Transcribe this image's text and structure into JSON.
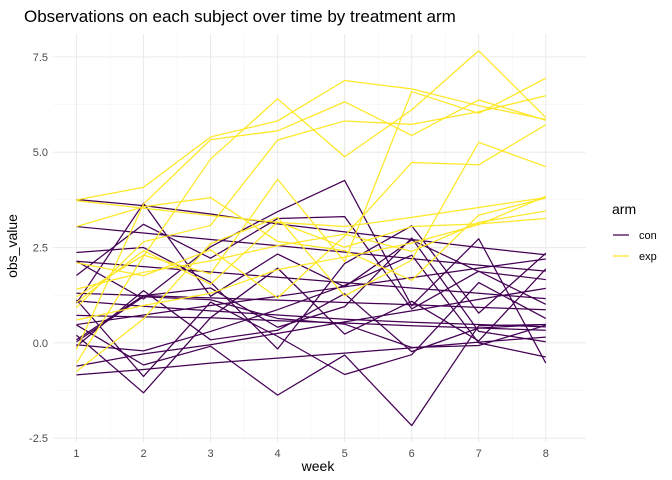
{
  "chart_data": {
    "type": "line",
    "title": "Observations on each subject over time by treatment arm",
    "xlabel": "week",
    "ylabel": "obs_value",
    "x": [
      1,
      2,
      3,
      4,
      5,
      6,
      7,
      8
    ],
    "xlim": [
      0.65,
      8.6
    ],
    "ylim": [
      -2.6,
      8.1
    ],
    "x_ticks": [
      1,
      2,
      3,
      4,
      5,
      6,
      7,
      8
    ],
    "y_ticks": [
      -2.5,
      0,
      2.5,
      5,
      7.5
    ],
    "y_tick_labels": [
      "-2.5",
      "0.0",
      "2.5",
      "5.0",
      "7.5"
    ],
    "grid": true,
    "legend": {
      "title": "arm",
      "placement": "right",
      "entries": [
        {
          "label": "con",
          "color": "#440154"
        },
        {
          "label": "exp",
          "color": "#FDE725"
        }
      ]
    },
    "series": [
      {
        "group": "con",
        "color": "#440154",
        "values": [
          0.2,
          -1.31,
          0.66,
          1.96,
          0.23,
          1.09,
          0.05,
          1.94
        ]
      },
      {
        "group": "con",
        "color": "#440154",
        "values": [
          1.13,
          -0.88,
          1.07,
          0.17,
          -0.83,
          -0.31,
          1.58,
          0.64
        ]
      },
      {
        "group": "con",
        "color": "#440154",
        "values": [
          1.77,
          3.11,
          2.22,
          3.26,
          3.31,
          0.89,
          1.88,
          1.01
        ]
      },
      {
        "group": "con",
        "color": "#440154",
        "values": [
          1.04,
          3.66,
          1.22,
          2.33,
          1.47,
          2.7,
          1.87,
          1.66
        ]
      },
      {
        "group": "con",
        "color": "#440154",
        "values": [
          0.47,
          -0.58,
          -0.09,
          -1.37,
          -0.32,
          -2.17,
          0.45,
          0.48
        ]
      },
      {
        "group": "con",
        "color": "#440154",
        "values": [
          2.37,
          2.5,
          1.59,
          -0.16,
          2.08,
          3.07,
          0.78,
          2.35
        ]
      },
      {
        "group": "con",
        "color": "#440154",
        "values": [
          0.03,
          1.21,
          1.13,
          0.64,
          0.49,
          -0.12,
          -0.07,
          0.46
        ]
      },
      {
        "group": "con",
        "color": "#440154",
        "values": [
          -0.09,
          1.37,
          0.08,
          0.33,
          1.29,
          -0.23,
          0.39,
          0.48
        ]
      },
      {
        "group": "con",
        "color": "#440154",
        "values": [
          0.08,
          1.24,
          1.44,
          0.41,
          0.95,
          2.75,
          0.3,
          0.03
        ]
      },
      {
        "group": "con",
        "color": "#440154",
        "values": [
          2.14,
          1.15,
          2.52,
          3.44,
          4.26,
          0.97,
          2.73,
          -0.53
        ]
      },
      {
        "group": "con",
        "color": "#440154",
        "values": [
          0.72,
          0.68,
          0.66,
          0.58,
          0.52,
          0.45,
          0.39,
          0.33
        ]
      },
      {
        "group": "con",
        "color": "#440154",
        "values": [
          1.1,
          0.96,
          0.84,
          0.73,
          0.62,
          0.54,
          0.48,
          0.42
        ]
      },
      {
        "group": "con",
        "color": "#440154",
        "values": [
          -0.84,
          -0.7,
          -0.53,
          -0.4,
          -0.27,
          -0.13,
          0.02,
          0.15
        ]
      },
      {
        "group": "con",
        "color": "#440154",
        "values": [
          3.76,
          3.6,
          3.38,
          3.12,
          2.91,
          2.71,
          2.5,
          2.31
        ]
      },
      {
        "group": "con",
        "color": "#440154",
        "values": [
          3.05,
          2.88,
          2.71,
          2.55,
          2.38,
          2.21,
          2.04,
          1.88
        ]
      },
      {
        "group": "con",
        "color": "#440154",
        "values": [
          1.3,
          1.24,
          1.18,
          1.12,
          1.06,
          1.0,
          0.93,
          0.87
        ]
      },
      {
        "group": "con",
        "color": "#440154",
        "values": [
          -0.61,
          -0.29,
          -0.05,
          0.25,
          0.55,
          0.84,
          1.14,
          1.43
        ]
      },
      {
        "group": "con",
        "color": "#440154",
        "values": [
          2.14,
          2.0,
          1.86,
          1.72,
          1.58,
          1.44,
          1.3,
          1.16
        ]
      },
      {
        "group": "con",
        "color": "#440154",
        "values": [
          0.48,
          0.73,
          0.98,
          1.22,
          1.47,
          1.71,
          1.96,
          2.2
        ]
      },
      {
        "group": "con",
        "color": "#440154",
        "values": [
          -0.05,
          -0.21,
          0.3,
          0.87,
          1.51,
          2.3,
          0.0,
          -0.37
        ]
      },
      {
        "group": "exp",
        "color": "#FDE725",
        "values": [
          3.75,
          4.08,
          5.4,
          5.82,
          6.88,
          6.66,
          6.22,
          5.86
        ]
      },
      {
        "group": "exp",
        "color": "#FDE725",
        "values": [
          -0.53,
          2.27,
          4.82,
          6.4,
          4.88,
          6.11,
          7.66,
          5.91
        ]
      },
      {
        "group": "exp",
        "color": "#FDE725",
        "values": [
          -0.17,
          3.64,
          5.33,
          5.56,
          6.32,
          5.44,
          6.37,
          5.84
        ]
      },
      {
        "group": "exp",
        "color": "#FDE725",
        "values": [
          1.21,
          2.3,
          1.81,
          4.29,
          2.13,
          6.59,
          6.02,
          6.94
        ]
      },
      {
        "group": "exp",
        "color": "#FDE725",
        "values": [
          3.05,
          3.57,
          3.81,
          2.66,
          2.42,
          1.64,
          3.35,
          3.8
        ]
      },
      {
        "group": "exp",
        "color": "#FDE725",
        "values": [
          0.93,
          2.65,
          3.08,
          5.32,
          5.82,
          5.73,
          6.06,
          6.48
        ]
      },
      {
        "group": "exp",
        "color": "#FDE725",
        "values": [
          2.1,
          1.76,
          2.44,
          1.18,
          2.8,
          4.73,
          4.67,
          5.72
        ]
      },
      {
        "group": "exp",
        "color": "#FDE725",
        "values": [
          1.06,
          2.42,
          1.54,
          3.17,
          2.51,
          3.05,
          3.12,
          3.26
        ]
      },
      {
        "group": "exp",
        "color": "#FDE725",
        "values": [
          -0.75,
          0.63,
          2.6,
          3.29,
          1.23,
          2.17,
          5.26,
          4.62
        ]
      },
      {
        "group": "exp",
        "color": "#FDE725",
        "values": [
          3.73,
          3.53,
          3.34,
          3.16,
          3.05,
          3.29,
          3.55,
          3.81
        ]
      },
      {
        "group": "exp",
        "color": "#FDE725",
        "values": [
          0.6,
          0.98,
          1.3,
          1.92,
          2.25,
          2.62,
          3.1,
          3.84
        ]
      },
      {
        "group": "exp",
        "color": "#FDE725",
        "values": [
          1.41,
          1.85,
          2.15,
          2.55,
          2.85,
          2.4,
          3.16,
          3.46
        ]
      }
    ]
  }
}
